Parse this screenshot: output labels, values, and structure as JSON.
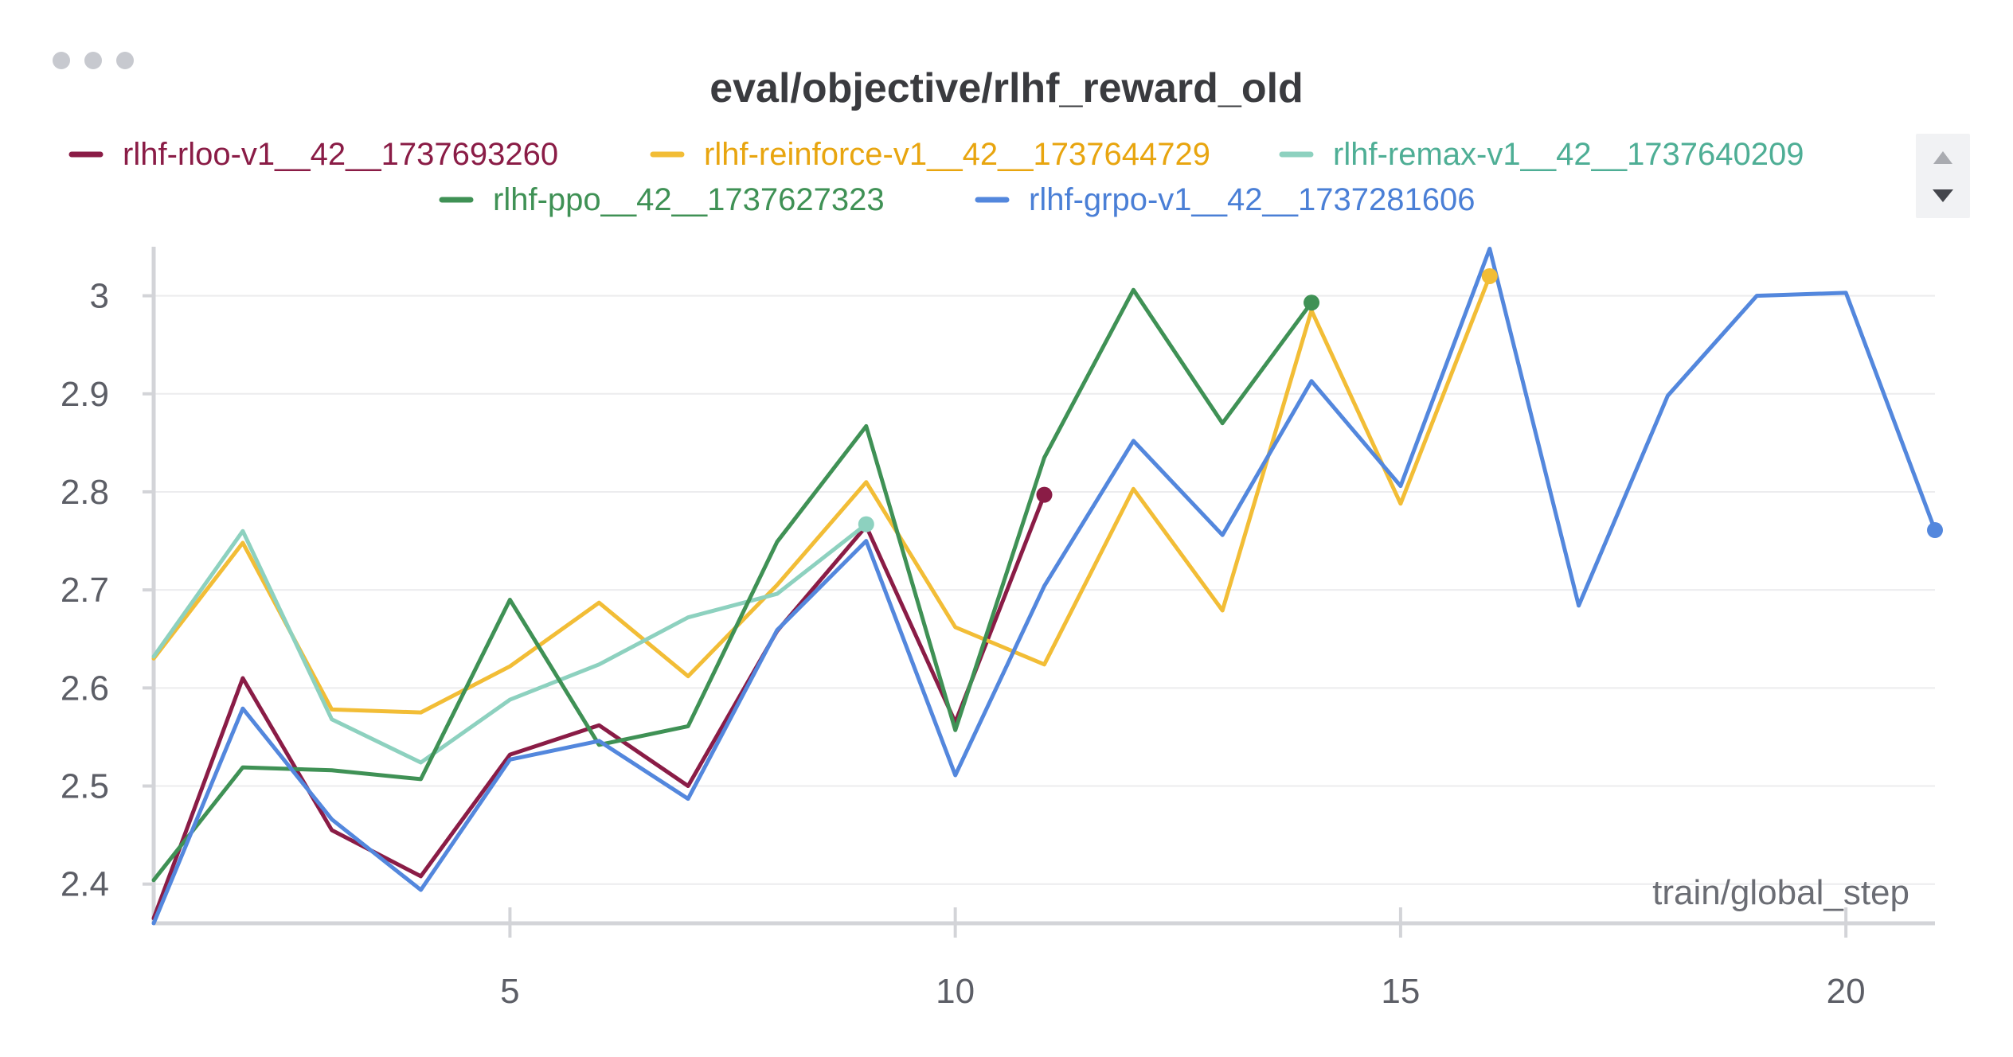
{
  "panel": {
    "menu_icon": "ellipsis-icon",
    "scroll_up_icon": "triangle-up-icon",
    "scroll_down_icon": "triangle-down-icon"
  },
  "chart_data": {
    "type": "line",
    "title": "eval/objective/rlhf_reward_old",
    "xlabel": "train/global_step",
    "ylabel": "",
    "xlim": [
      1,
      21
    ],
    "ylim": [
      2.36,
      3.05
    ],
    "x_ticks": [
      5,
      10,
      15,
      20
    ],
    "y_ticks": [
      2.4,
      2.5,
      2.6,
      2.7,
      2.8,
      2.9,
      3
    ],
    "y_tick_labels": [
      "2.4",
      "2.5",
      "2.6",
      "2.7",
      "2.8",
      "2.9",
      "3"
    ],
    "grid": true,
    "legend_position": "top",
    "series": [
      {
        "name": "rlhf-rloo-v1__42__1737693260",
        "color": "#8a1c46",
        "legend_text_color": "#8a1c46",
        "x": [
          1,
          2,
          3,
          4,
          5,
          6,
          7,
          8,
          9,
          10,
          11
        ],
        "y": [
          2.365,
          2.61,
          2.455,
          2.408,
          2.532,
          2.562,
          2.5,
          2.658,
          2.765,
          2.565,
          2.797
        ]
      },
      {
        "name": "rlhf-reinforce-v1__42__1737644729",
        "color": "#f2bd36",
        "legend_text_color": "#e8a50f",
        "x": [
          1,
          2,
          3,
          4,
          5,
          6,
          7,
          8,
          9,
          10,
          11,
          12,
          13,
          14,
          15,
          16
        ],
        "y": [
          2.63,
          2.748,
          2.578,
          2.575,
          2.622,
          2.687,
          2.612,
          2.705,
          2.81,
          2.662,
          2.624,
          2.803,
          2.679,
          2.985,
          2.788,
          3.02
        ]
      },
      {
        "name": "rlhf-remax-v1__42__1737640209",
        "color": "#8dd1bf",
        "legend_text_color": "#4eae95",
        "x": [
          1,
          2,
          3,
          4,
          5,
          6,
          7,
          8,
          9
        ],
        "y": [
          2.632,
          2.76,
          2.568,
          2.524,
          2.588,
          2.624,
          2.672,
          2.696,
          2.767
        ]
      },
      {
        "name": "rlhf-ppo__42__1737627323",
        "color": "#3f9155",
        "legend_text_color": "#3f9155",
        "x": [
          1,
          2,
          3,
          4,
          5,
          6,
          7,
          8,
          9,
          10,
          11,
          12,
          13,
          14
        ],
        "y": [
          2.404,
          2.519,
          2.516,
          2.507,
          2.69,
          2.542,
          2.561,
          2.749,
          2.867,
          2.557,
          2.835,
          3.006,
          2.87,
          2.993
        ]
      },
      {
        "name": "rlhf-grpo-v1__42__1737281606",
        "color": "#5387dd",
        "legend_text_color": "#4a7fd6",
        "x": [
          1,
          2,
          3,
          4,
          5,
          6,
          7,
          8,
          9,
          10,
          11,
          12,
          13,
          14,
          15,
          16,
          17,
          18,
          19,
          20,
          21
        ],
        "y": [
          2.36,
          2.579,
          2.466,
          2.394,
          2.527,
          2.546,
          2.487,
          2.659,
          2.75,
          2.511,
          2.704,
          2.852,
          2.756,
          2.913,
          2.806,
          3.048,
          2.684,
          2.898,
          3.0,
          3.003,
          2.761
        ]
      }
    ]
  }
}
